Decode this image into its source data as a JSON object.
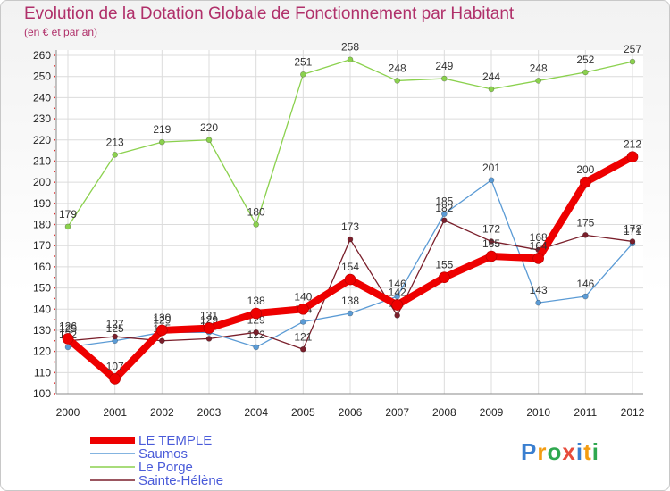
{
  "chart_data": {
    "type": "line",
    "title": "Evolution de la Dotation Globale de Fonctionnement par Habitant",
    "subtitle": "(en € et par an)",
    "xlabel": "",
    "ylabel": "",
    "ylim": [
      100,
      260
    ],
    "yticks": [
      100,
      110,
      120,
      130,
      140,
      150,
      160,
      170,
      180,
      190,
      200,
      210,
      220,
      230,
      240,
      250,
      260
    ],
    "x": [
      "2000",
      "2001",
      "2002",
      "2003",
      "2004",
      "2005",
      "2006",
      "2007",
      "2008",
      "2009",
      "2010",
      "2011",
      "2012"
    ],
    "series": [
      {
        "name": "Saumos",
        "color": "#5b9bd5",
        "values": [
          122,
          125,
          129,
          129,
          122,
          134,
          138,
          146,
          185,
          201,
          143,
          146,
          171
        ]
      },
      {
        "name": "Le Porge",
        "color": "#8bd14e",
        "values": [
          179,
          213,
          219,
          220,
          180,
          251,
          258,
          248,
          249,
          244,
          248,
          252,
          257
        ]
      },
      {
        "name": "Sainte-Hélène",
        "color": "#7a1f2b",
        "values": [
          125,
          127,
          125,
          126,
          129,
          121,
          173,
          137,
          182,
          172,
          168,
          175,
          172
        ]
      },
      {
        "name": "LE TEMPLE",
        "color": "#ee0000",
        "values": [
          126,
          107,
          130,
          131,
          138,
          140,
          154,
          142,
          155,
          165,
          164,
          200,
          212
        ]
      }
    ],
    "legend_position": "bottom-left",
    "grid": true
  },
  "legend": {
    "items": [
      {
        "name": "LE TEMPLE",
        "color": "#ee0000"
      },
      {
        "name": "Saumos",
        "color": "#5b9bd5"
      },
      {
        "name": "Le Porge",
        "color": "#8bd14e"
      },
      {
        "name": "Sainte-Hélène",
        "color": "#7a1f2b"
      }
    ]
  },
  "logo": {
    "text": "Proxiti",
    "letter_colors": [
      "#3a7fd0",
      "#f39c12",
      "#2fa84f",
      "#e74c3c",
      "#3a7fd0",
      "#f39c12",
      "#2fa84f"
    ]
  }
}
